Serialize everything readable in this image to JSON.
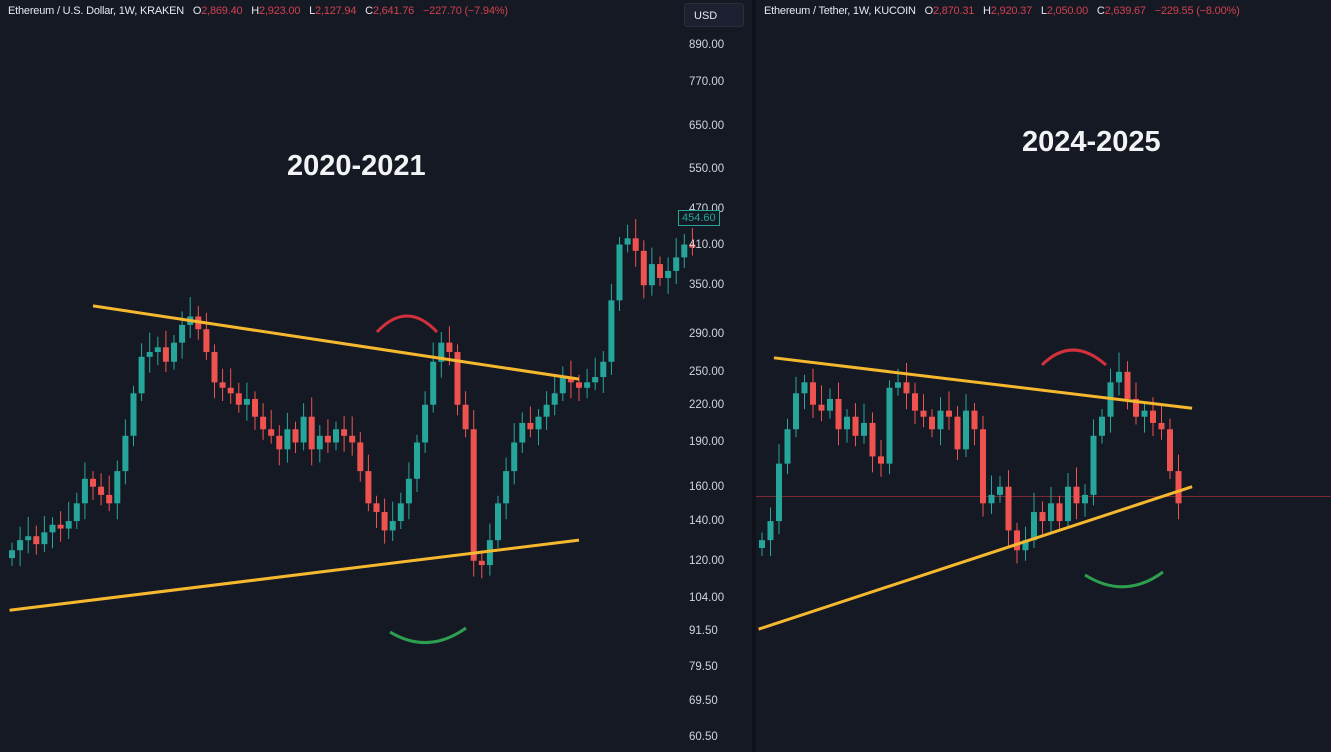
{
  "left_header": {
    "symbol": "Ethereum / U.S. Dollar, 1W, KRAKEN",
    "o_label": "O",
    "o": "2,869.40",
    "h_label": "H",
    "h": "2,923.00",
    "l_label": "L",
    "l": "2,127.94",
    "c_label": "C",
    "c": "2,641.76",
    "change": "−227.70 (−7.94%)"
  },
  "right_header": {
    "symbol": "Ethereum / Tether, 1W, KUCOIN",
    "o_label": "O",
    "o": "2,870.31",
    "h_label": "H",
    "h": "2,920.37",
    "l_label": "L",
    "l": "2,050.00",
    "c_label": "C",
    "c": "2,639.67",
    "change": "−229.55 (−8.00%)"
  },
  "currency_button": "USD",
  "colors": {
    "up": "#26a69a",
    "down": "#ef5350",
    "trendline": "#f5b82e",
    "top_arc": "#d0313b",
    "bottom_arc": "#2e9e4f",
    "background": "#151924"
  },
  "chart_data": [
    {
      "type": "candlestick",
      "title": "2020-2021",
      "yscale": "log",
      "ylim": [
        58,
        1000
      ],
      "y_ticks": [
        "890.00",
        "770.00",
        "650.00",
        "550.00",
        "470.00",
        "410.00",
        "350.00",
        "290.00",
        "250.00",
        "220.00",
        "190.00",
        "160.00",
        "140.00",
        "120.00",
        "104.00",
        "91.50",
        "79.50",
        "69.50",
        "60.50"
      ],
      "last_price_label": "454.60",
      "closes": [
        125,
        130,
        132,
        128,
        134,
        138,
        136,
        140,
        150,
        165,
        160,
        155,
        150,
        170,
        195,
        230,
        265,
        270,
        275,
        260,
        280,
        300,
        310,
        295,
        270,
        240,
        235,
        230,
        220,
        225,
        210,
        200,
        195,
        185,
        200,
        190,
        210,
        185,
        195,
        190,
        200,
        195,
        190,
        170,
        150,
        145,
        135,
        140,
        150,
        165,
        190,
        220,
        260,
        280,
        270,
        220,
        200,
        120,
        118,
        130,
        150,
        170,
        190,
        205,
        200,
        210,
        220,
        230,
        245,
        240,
        235,
        240,
        245,
        260,
        330,
        410,
        420,
        400,
        350,
        380,
        360,
        370,
        390,
        410,
        405
      ],
      "trendlines": [
        {
          "from": [
            10,
            323
          ],
          "to": [
            70,
            243
          ]
        },
        {
          "from": [
            -0.3,
            99
          ],
          "to": [
            70,
            130
          ]
        }
      ]
    },
    {
      "type": "candlestick",
      "title": "2024-2025",
      "yscale": "log",
      "closes": [
        130,
        140,
        175,
        200,
        230,
        240,
        220,
        215,
        225,
        200,
        210,
        195,
        205,
        180,
        175,
        235,
        240,
        230,
        215,
        210,
        200,
        215,
        210,
        185,
        215,
        200,
        150,
        155,
        160,
        135,
        125,
        130,
        145,
        140,
        150,
        140,
        160,
        150,
        155,
        195,
        210,
        240,
        250,
        225,
        210,
        215,
        205,
        200,
        170,
        150
      ],
      "horizontal_line": 154,
      "trendlines": [
        {
          "from": [
            1.4,
            264
          ],
          "to": [
            50.6,
            217
          ]
        },
        {
          "from": [
            -0.4,
            92
          ],
          "to": [
            50.6,
            160
          ]
        }
      ]
    }
  ]
}
